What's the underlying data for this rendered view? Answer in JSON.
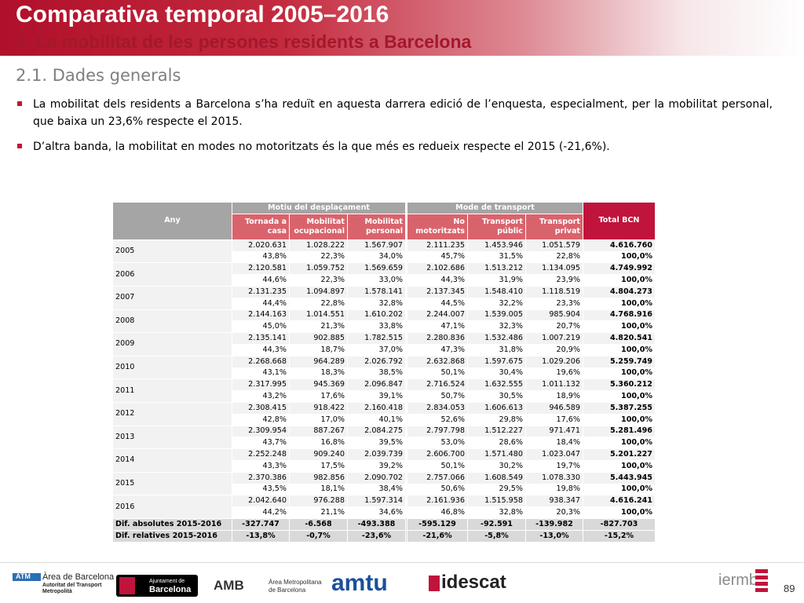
{
  "header": {
    "title": "Comparativa temporal 2005–2016",
    "subtitle": "2. La mobilitat de les persones residents a Barcelona"
  },
  "section": "2.1. Dades generals",
  "bullets": [
    "La mobilitat dels residents a Barcelona s’ha reduït en aquesta darrera edició de l’enquesta, especialment, per la mobilitat personal, que baixa un 23,6% respecte el 2015.",
    "D’altra banda, la mobilitat en modes no motoritzats és la que més es redueix respecte el 2015 (-21,6%)."
  ],
  "table": {
    "any_label": "Any",
    "groups": [
      "Motiu del desplaçament",
      "Mode de transport"
    ],
    "total_label": "Total BCN",
    "columns": [
      [
        "Tornada a",
        "casa"
      ],
      [
        "Mobilitat",
        "ocupacional"
      ],
      [
        "Mobilitat",
        "personal"
      ],
      [
        "No",
        "motoritzats"
      ],
      [
        "Transport",
        "públic"
      ],
      [
        "Transport",
        "privat"
      ]
    ],
    "rows": [
      {
        "year": "2005",
        "counts": [
          "2.020.631",
          "1.028.222",
          "1.567.907",
          "2.111.235",
          "1.453.946",
          "1.051.579",
          "4.616.760"
        ],
        "percents": [
          "43,8%",
          "22,3%",
          "34,0%",
          "45,7%",
          "31,5%",
          "22,8%",
          "100,0%"
        ]
      },
      {
        "year": "2006",
        "counts": [
          "2.120.581",
          "1.059.752",
          "1.569.659",
          "2.102.686",
          "1.513.212",
          "1.134.095",
          "4.749.992"
        ],
        "percents": [
          "44,6%",
          "22,3%",
          "33,0%",
          "44,3%",
          "31,9%",
          "23,9%",
          "100,0%"
        ]
      },
      {
        "year": "2007",
        "counts": [
          "2.131.235",
          "1.094.897",
          "1.578.141",
          "2.137.345",
          "1.548.410",
          "1.118.519",
          "4.804.273"
        ],
        "percents": [
          "44,4%",
          "22,8%",
          "32,8%",
          "44,5%",
          "32,2%",
          "23,3%",
          "100,0%"
        ]
      },
      {
        "year": "2008",
        "counts": [
          "2.144.163",
          "1.014.551",
          "1.610.202",
          "2.244.007",
          "1.539.005",
          "985.904",
          "4.768.916"
        ],
        "percents": [
          "45,0%",
          "21,3%",
          "33,8%",
          "47,1%",
          "32,3%",
          "20,7%",
          "100,0%"
        ]
      },
      {
        "year": "2009",
        "counts": [
          "2.135.141",
          "902.885",
          "1.782.515",
          "2.280.836",
          "1.532.486",
          "1.007.219",
          "4.820.541"
        ],
        "percents": [
          "44,3%",
          "18,7%",
          "37,0%",
          "47,3%",
          "31,8%",
          "20,9%",
          "100,0%"
        ]
      },
      {
        "year": "2010",
        "counts": [
          "2.268.668",
          "964.289",
          "2.026.792",
          "2.632.868",
          "1.597.675",
          "1.029.206",
          "5.259.749"
        ],
        "percents": [
          "43,1%",
          "18,3%",
          "38,5%",
          "50,1%",
          "30,4%",
          "19,6%",
          "100,0%"
        ]
      },
      {
        "year": "2011",
        "counts": [
          "2.317.995",
          "945.369",
          "2.096.847",
          "2.716.524",
          "1.632.555",
          "1.011.132",
          "5.360.212"
        ],
        "percents": [
          "43,2%",
          "17,6%",
          "39,1%",
          "50,7%",
          "30,5%",
          "18,9%",
          "100,0%"
        ]
      },
      {
        "year": "2012",
        "counts": [
          "2.308.415",
          "918.422",
          "2.160.418",
          "2.834.053",
          "1.606.613",
          "946.589",
          "5.387.255"
        ],
        "percents": [
          "42,8%",
          "17,0%",
          "40,1%",
          "52,6%",
          "29,8%",
          "17,6%",
          "100,0%"
        ]
      },
      {
        "year": "2013",
        "counts": [
          "2.309.954",
          "887.267",
          "2.084.275",
          "2.797.798",
          "1.512.227",
          "971.471",
          "5.281.496"
        ],
        "percents": [
          "43,7%",
          "16,8%",
          "39,5%",
          "53,0%",
          "28,6%",
          "18,4%",
          "100,0%"
        ]
      },
      {
        "year": "2014",
        "counts": [
          "2.252.248",
          "909.240",
          "2.039.739",
          "2.606.700",
          "1.571.480",
          "1.023.047",
          "5.201.227"
        ],
        "percents": [
          "43,3%",
          "17,5%",
          "39,2%",
          "50,1%",
          "30,2%",
          "19,7%",
          "100,0%"
        ]
      },
      {
        "year": "2015",
        "counts": [
          "2.370.386",
          "982.856",
          "2.090.702",
          "2.757.066",
          "1.608.549",
          "1.078.330",
          "5.443.945"
        ],
        "percents": [
          "43,5%",
          "18,1%",
          "38,4%",
          "50,6%",
          "29,5%",
          "19,8%",
          "100,0%"
        ]
      },
      {
        "year": "2016",
        "counts": [
          "2.042.640",
          "976.288",
          "1.597.314",
          "2.161.936",
          "1.515.958",
          "938.347",
          "4.616.241"
        ],
        "percents": [
          "44,2%",
          "21,1%",
          "34,6%",
          "46,8%",
          "32,8%",
          "20,3%",
          "100,0%"
        ]
      }
    ],
    "diffs": [
      {
        "label": "Dif. absolutes 2015-2016",
        "values": [
          "-327.747",
          "-6.568",
          "-493.388",
          "-595.129",
          "-92.591",
          "-139.982",
          "-827.703"
        ]
      },
      {
        "label": "Dif. relatives 2015-2016",
        "values": [
          "-13,8%",
          "-0,7%",
          "-23,6%",
          "-21,6%",
          "-5,8%",
          "-13,0%",
          "-15,2%"
        ]
      }
    ]
  },
  "footer": {
    "logos": [
      "ATM",
      "Àrea de Barcelona",
      "Autoritat del Transport",
      "Metropolità",
      "Ajuntament de",
      "Barcelona",
      "AMB",
      "Àrea Metropolitana",
      "de Barcelona",
      "amtu",
      "idescat",
      "iermb"
    ],
    "page": "89"
  }
}
